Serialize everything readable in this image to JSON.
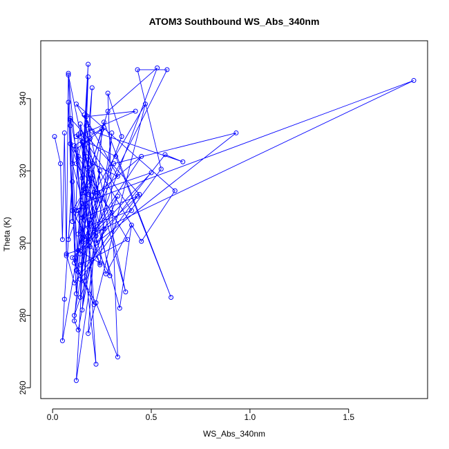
{
  "chart_data": {
    "type": "scatter",
    "title": "ATOM3 Southbound WS_Abs_340nm",
    "xlabel": "WS_Abs_340nm",
    "ylabel": "Theta (K)",
    "xlim": [
      -0.06,
      1.9
    ],
    "ylim": [
      257,
      356
    ],
    "x_ticks": [
      0.0,
      0.5,
      1.0,
      1.5
    ],
    "x_tick_labels": [
      "0.0",
      "0.5",
      "1.0",
      "1.5"
    ],
    "y_ticks": [
      260,
      280,
      300,
      320,
      340
    ],
    "y_tick_labels": [
      "260",
      "280",
      "300",
      "320",
      "340"
    ],
    "grid": false,
    "markers_connected": true,
    "colors": {
      "series": "#0000ff",
      "axes": "#000000",
      "background": "#ffffff"
    },
    "series": [
      {
        "x": [
          0.01,
          0.04,
          0.05,
          0.06,
          0.07,
          0.08,
          0.09,
          0.1,
          0.08,
          0.12,
          0.15,
          0.18,
          0.14,
          0.2,
          0.17,
          0.22,
          0.13,
          0.11,
          0.16,
          0.19,
          0.12,
          0.3,
          0.24,
          0.1,
          0.09,
          0.13,
          0.22,
          0.33,
          0.28,
          0.35,
          0.16,
          0.12,
          0.25,
          0.18,
          0.47,
          0.21,
          0.14,
          0.55,
          0.43,
          0.58,
          0.19,
          0.13,
          0.26,
          0.11,
          0.08,
          0.15,
          1.83,
          0.18,
          0.31,
          0.93,
          0.22,
          0.57,
          0.66,
          0.2,
          0.12,
          0.62,
          0.45,
          0.15,
          0.18,
          0.34,
          0.4,
          0.27,
          0.16,
          0.09,
          0.44,
          0.1,
          0.21,
          0.14,
          0.37,
          0.17,
          0.42,
          0.12,
          0.32,
          0.6,
          0.26,
          0.2,
          0.15,
          0.24,
          0.11,
          0.13,
          0.23,
          0.19,
          0.16,
          0.33,
          0.14,
          0.18,
          0.12,
          0.1,
          0.06,
          0.05,
          0.17,
          0.22,
          0.13,
          0.29,
          0.08,
          0.15,
          0.43,
          0.11,
          0.07,
          0.19,
          0.53,
          0.28,
          0.16,
          0.12,
          0.45,
          0.21,
          0.14,
          0.38,
          0.09,
          0.18,
          0.5,
          0.13,
          0.24,
          0.1,
          0.2,
          0.15,
          0.3,
          0.12,
          0.17,
          0.22,
          0.14,
          0.4,
          0.19,
          0.11,
          0.26,
          0.16,
          0.33,
          0.13,
          0.21,
          0.18
        ],
        "y": [
          329.5,
          322,
          301,
          330.5,
          296.5,
          347,
          332.5,
          306,
          339,
          286,
          318,
          346,
          285,
          343,
          324,
          302,
          276,
          278.5,
          310,
          329,
          262,
          330.5,
          294,
          322,
          334,
          292,
          283.5,
          268.5,
          341.5,
          329.5,
          301,
          326,
          331.5,
          275,
          338.5,
          314,
          290,
          320.5,
          348,
          348,
          305.5,
          302.5,
          332,
          327,
          301,
          311,
          345,
          302,
          322,
          330.5,
          300,
          324.5,
          322.5,
          331,
          338.5,
          314.5,
          300.5,
          328,
          315,
          282,
          305,
          291.5,
          314,
          334.5,
          313.5,
          296,
          283,
          333,
          286.5,
          335,
          336.5,
          329.5,
          324,
          285,
          333.5,
          322,
          281.5,
          320,
          294.5,
          330,
          314,
          306.5,
          289.5,
          313,
          297,
          349.5,
          292.5,
          317,
          284.5,
          273,
          311,
          266.5,
          309,
          291,
          346.5,
          307,
          313,
          289,
          297,
          299,
          348.5,
          336.5,
          315,
          309,
          324,
          304,
          294,
          301,
          327.5,
          313.5,
          319.5,
          298,
          294.5,
          309,
          318,
          300.5,
          308.5,
          322,
          332.5,
          312,
          330.5,
          309,
          305,
          280,
          304,
          335.5,
          318.5,
          324,
          303.5,
          321
        ]
      }
    ]
  }
}
